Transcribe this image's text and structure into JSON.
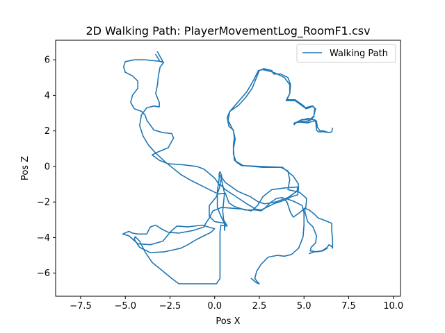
{
  "chart_data": {
    "type": "line",
    "title": "2D Walking Path: PlayerMovementLog_RoomF1.csv",
    "xlabel": "Pos X",
    "ylabel": "Pos Z",
    "xlim": [
      -8.9,
      10.4
    ],
    "ylim": [
      -7.3,
      7.1
    ],
    "xticks": [
      -7.5,
      -5.0,
      -2.5,
      0.0,
      2.5,
      5.0,
      7.5,
      10.0
    ],
    "xtick_labels": [
      "−7.5",
      "−5.0",
      "−2.5",
      "0.0",
      "2.5",
      "5.0",
      "7.5",
      "10.0"
    ],
    "yticks": [
      -6,
      -4,
      -2,
      0,
      2,
      4,
      6
    ],
    "ytick_labels": [
      "−6",
      "−4",
      "−2",
      "0",
      "2",
      "4",
      "6"
    ],
    "grid": false,
    "legend": {
      "placement": "top-right",
      "entries": [
        "Walking Path"
      ]
    },
    "series": [
      {
        "name": "Walking Path",
        "color": "#1f77b4",
        "points": [
          [
            -3.2,
            6.45
          ],
          [
            -2.9,
            5.9
          ],
          [
            -3.4,
            5.95
          ],
          [
            -3.9,
            6.0
          ],
          [
            -4.5,
            6.0
          ],
          [
            -5.0,
            5.9
          ],
          [
            -5.1,
            5.6
          ],
          [
            -5.0,
            5.3
          ],
          [
            -4.6,
            5.1
          ],
          [
            -4.3,
            4.8
          ],
          [
            -4.3,
            4.4
          ],
          [
            -4.6,
            4.0
          ],
          [
            -4.7,
            3.6
          ],
          [
            -4.5,
            3.25
          ],
          [
            -4.1,
            3.1
          ],
          [
            -3.9,
            2.9
          ],
          [
            -3.8,
            2.6
          ],
          [
            -3.4,
            2.05
          ],
          [
            -2.9,
            1.9
          ],
          [
            -2.4,
            1.85
          ],
          [
            -2.3,
            1.6
          ],
          [
            -2.6,
            1.05
          ],
          [
            -3.2,
            0.8
          ],
          [
            -3.5,
            0.65
          ],
          [
            -3.1,
            0.35
          ],
          [
            -2.6,
            0.15
          ],
          [
            -1.8,
            0.1
          ],
          [
            -1.0,
            0.0
          ],
          [
            -0.6,
            -0.15
          ],
          [
            0.0,
            -0.65
          ],
          [
            0.3,
            -1.1
          ],
          [
            0.1,
            -1.7
          ],
          [
            -0.3,
            -2.2
          ],
          [
            -0.3,
            -2.8
          ],
          [
            0.0,
            -3.1
          ],
          [
            0.6,
            -3.2
          ],
          [
            0.55,
            -3.6
          ],
          [
            0.55,
            -3.2
          ],
          [
            0.35,
            -2.8
          ],
          [
            0.15,
            -2.3
          ],
          [
            0.15,
            -1.4
          ],
          [
            0.25,
            -0.65
          ],
          [
            0.25,
            -0.4
          ],
          [
            0.3,
            -0.3
          ],
          [
            0.4,
            -0.55
          ],
          [
            0.3,
            -1.0
          ],
          [
            0.6,
            -1.3
          ],
          [
            1.2,
            -1.7
          ],
          [
            1.8,
            -2.1
          ],
          [
            2.3,
            -2.4
          ],
          [
            2.6,
            -2.45
          ],
          [
            2.9,
            -2.3
          ],
          [
            3.3,
            -2.1
          ],
          [
            3.9,
            -1.9
          ],
          [
            4.3,
            -1.7
          ],
          [
            4.65,
            -1.6
          ],
          [
            4.7,
            -1.15
          ],
          [
            4.0,
            -1.2
          ],
          [
            3.2,
            -1.3
          ],
          [
            2.7,
            -1.7
          ],
          [
            2.4,
            -2.2
          ],
          [
            2.05,
            -2.5
          ],
          [
            1.6,
            -2.4
          ],
          [
            1.0,
            -2.35
          ],
          [
            0.4,
            -2.3
          ],
          [
            -0.1,
            -2.5
          ],
          [
            -0.3,
            -2.9
          ],
          [
            -0.5,
            -3.2
          ],
          [
            -0.6,
            -3.4
          ],
          [
            -1.2,
            -3.6
          ],
          [
            -2.0,
            -3.75
          ],
          [
            -2.6,
            -3.7
          ],
          [
            -3.0,
            -3.5
          ],
          [
            -3.3,
            -3.3
          ],
          [
            -3.6,
            -3.4
          ],
          [
            -3.8,
            -3.8
          ],
          [
            -4.3,
            -3.8
          ],
          [
            -4.6,
            -3.75
          ],
          [
            -4.8,
            -3.65
          ],
          [
            -5.15,
            -3.8
          ],
          [
            -4.8,
            -3.9
          ],
          [
            -4.3,
            -4.35
          ],
          [
            -3.6,
            -4.4
          ],
          [
            -2.9,
            -4.2
          ],
          [
            -2.4,
            -3.6
          ],
          [
            -2.1,
            -3.35
          ],
          [
            -1.5,
            -3.4
          ],
          [
            -0.7,
            -3.3
          ],
          [
            -0.35,
            -3.4
          ],
          [
            0.0,
            -3.5
          ],
          [
            -0.2,
            -3.7
          ],
          [
            -0.6,
            -3.9
          ],
          [
            -1.0,
            -4.1
          ],
          [
            -1.5,
            -4.4
          ],
          [
            -1.9,
            -4.6
          ],
          [
            -2.8,
            -4.8
          ],
          [
            -3.6,
            -4.85
          ],
          [
            -4.2,
            -4.55
          ],
          [
            -4.5,
            -4.1
          ],
          [
            -4.45,
            -3.95
          ],
          [
            -4.2,
            -4.2
          ],
          [
            -3.9,
            -4.8
          ],
          [
            -3.5,
            -5.4
          ],
          [
            -3.0,
            -5.8
          ],
          [
            -2.4,
            -6.3
          ],
          [
            -2.0,
            -6.6
          ],
          [
            -1.2,
            -6.6
          ],
          [
            -0.4,
            -6.6
          ],
          [
            0.1,
            -6.6
          ],
          [
            0.3,
            -6.3
          ],
          [
            0.3,
            -5.0
          ],
          [
            0.3,
            -3.7
          ],
          [
            0.35,
            -3.3
          ],
          [
            0.7,
            -3.35
          ],
          [
            0.5,
            -3.0
          ],
          [
            0.45,
            -2.5
          ],
          [
            0.55,
            -1.5
          ],
          [
            0.35,
            -0.6
          ],
          [
            0.3,
            -0.5
          ],
          [
            0.6,
            -0.9
          ],
          [
            1.3,
            -1.4
          ],
          [
            2.0,
            -1.7
          ],
          [
            2.45,
            -2.0
          ],
          [
            2.8,
            -2.1
          ],
          [
            3.4,
            -2.0
          ],
          [
            4.1,
            -1.75
          ],
          [
            4.6,
            -1.4
          ],
          [
            4.7,
            -1.0
          ],
          [
            4.4,
            -0.55
          ],
          [
            3.8,
            -0.05
          ],
          [
            2.6,
            0.0
          ],
          [
            1.5,
            0.05
          ],
          [
            1.2,
            0.25
          ],
          [
            1.05,
            0.7
          ],
          [
            1.05,
            1.2
          ],
          [
            1.1,
            1.6
          ],
          [
            1.05,
            2.05
          ],
          [
            0.8,
            2.25
          ],
          [
            0.7,
            2.75
          ],
          [
            0.85,
            3.1
          ],
          [
            1.35,
            3.45
          ],
          [
            1.75,
            3.9
          ],
          [
            2.1,
            4.4
          ],
          [
            2.3,
            4.9
          ],
          [
            2.5,
            5.4
          ],
          [
            2.75,
            5.5
          ],
          [
            3.2,
            5.4
          ],
          [
            3.3,
            5.2
          ],
          [
            3.7,
            5.2
          ],
          [
            4.1,
            5.0
          ],
          [
            4.25,
            4.6
          ],
          [
            4.2,
            4.1
          ],
          [
            4.05,
            3.75
          ],
          [
            4.5,
            3.75
          ],
          [
            5.0,
            3.4
          ],
          [
            5.1,
            3.25
          ],
          [
            5.3,
            3.3
          ],
          [
            5.5,
            3.4
          ],
          [
            5.6,
            3.25
          ],
          [
            5.55,
            2.8
          ],
          [
            5.35,
            2.6
          ],
          [
            4.9,
            2.65
          ],
          [
            4.55,
            2.45
          ],
          [
            4.45,
            2.35
          ],
          [
            4.45,
            2.45
          ],
          [
            4.75,
            2.5
          ],
          [
            5.2,
            2.45
          ],
          [
            5.5,
            2.55
          ],
          [
            5.7,
            2.55
          ],
          [
            5.75,
            2.2
          ],
          [
            5.9,
            2.0
          ],
          [
            6.1,
            2.0
          ],
          [
            6.4,
            1.9
          ],
          [
            6.55,
            1.95
          ],
          [
            6.6,
            2.15
          ],
          [
            6.55,
            1.95
          ],
          [
            6.4,
            1.9
          ],
          [
            6.1,
            1.95
          ],
          [
            5.8,
            1.95
          ],
          [
            5.7,
            2.05
          ],
          [
            5.65,
            2.6
          ],
          [
            5.25,
            2.7
          ],
          [
            4.8,
            2.6
          ],
          [
            4.5,
            2.45
          ],
          [
            4.45,
            2.35
          ],
          [
            4.6,
            2.5
          ],
          [
            5.0,
            2.55
          ],
          [
            5.2,
            2.5
          ],
          [
            5.55,
            2.85
          ],
          [
            5.65,
            3.25
          ],
          [
            5.45,
            3.4
          ],
          [
            5.05,
            3.3
          ],
          [
            4.5,
            3.7
          ],
          [
            4.0,
            3.7
          ],
          [
            4.2,
            4.1
          ],
          [
            4.2,
            4.6
          ],
          [
            3.9,
            5.0
          ],
          [
            3.4,
            5.25
          ],
          [
            3.1,
            5.35
          ],
          [
            2.7,
            5.45
          ],
          [
            2.45,
            5.4
          ],
          [
            2.2,
            4.9
          ],
          [
            1.8,
            4.2
          ],
          [
            1.2,
            3.5
          ],
          [
            0.85,
            3.1
          ],
          [
            0.75,
            2.6
          ],
          [
            1.05,
            2.0
          ],
          [
            1.15,
            1.55
          ],
          [
            1.05,
            1.0
          ],
          [
            1.1,
            0.35
          ],
          [
            1.6,
            0.05
          ],
          [
            2.7,
            -0.05
          ],
          [
            3.7,
            -0.05
          ],
          [
            4.1,
            -0.25
          ],
          [
            4.2,
            -0.75
          ],
          [
            4.1,
            -1.3
          ],
          [
            4.75,
            -1.45
          ],
          [
            5.15,
            -1.8
          ],
          [
            5.1,
            -2.3
          ],
          [
            4.75,
            -2.6
          ],
          [
            4.4,
            -2.85
          ],
          [
            4.25,
            -2.6
          ],
          [
            4.05,
            -2.0
          ],
          [
            3.8,
            -1.75
          ],
          [
            3.45,
            -1.8
          ],
          [
            3.1,
            -2.05
          ],
          [
            2.8,
            -2.35
          ],
          [
            2.6,
            -2.5
          ],
          [
            2.3,
            -2.45
          ],
          [
            1.7,
            -2.45
          ],
          [
            1.1,
            -2.25
          ],
          [
            0.8,
            -2.05
          ],
          [
            0.6,
            -1.5
          ],
          [
            0.2,
            -1.55
          ],
          [
            -0.5,
            -1.2
          ],
          [
            -1.3,
            -0.8
          ],
          [
            -1.9,
            -0.45
          ],
          [
            -2.7,
            0.2
          ],
          [
            -3.3,
            0.75
          ],
          [
            -3.7,
            1.2
          ],
          [
            -4.0,
            1.7
          ],
          [
            -4.2,
            2.3
          ],
          [
            -4.1,
            2.9
          ],
          [
            -3.8,
            3.3
          ],
          [
            -3.4,
            3.4
          ],
          [
            -3.1,
            3.35
          ],
          [
            -3.1,
            3.6
          ],
          [
            -3.3,
            4.1
          ],
          [
            -3.2,
            4.6
          ],
          [
            -3.15,
            5.1
          ],
          [
            -3.05,
            5.6
          ],
          [
            -2.85,
            5.85
          ],
          [
            -3.05,
            5.9
          ],
          [
            -3.3,
            6.3
          ]
        ]
      },
      {
        "name": "",
        "color": "#1f77b4",
        "points": [
          [
            5.3,
            -4.9
          ],
          [
            5.6,
            -4.8
          ],
          [
            6.0,
            -4.75
          ],
          [
            6.3,
            -4.55
          ],
          [
            6.4,
            -4.4
          ],
          [
            6.55,
            -4.5
          ],
          [
            6.6,
            -4.6
          ],
          [
            6.6,
            -4.1
          ],
          [
            6.55,
            -3.6
          ],
          [
            6.55,
            -3.2
          ],
          [
            6.2,
            -3.05
          ],
          [
            5.8,
            -2.9
          ],
          [
            5.6,
            -2.7
          ],
          [
            5.3,
            -2.45
          ],
          [
            5.05,
            -2.35
          ],
          [
            5.05,
            -2.55
          ],
          [
            5.2,
            -3.1
          ],
          [
            5.5,
            -3.4
          ],
          [
            5.7,
            -3.9
          ],
          [
            5.65,
            -4.3
          ],
          [
            5.4,
            -4.55
          ],
          [
            5.35,
            -4.75
          ],
          [
            5.7,
            -4.8
          ],
          [
            6.05,
            -4.75
          ],
          [
            6.3,
            -4.6
          ]
        ]
      },
      {
        "name": "",
        "color": "#1f77b4",
        "points": [
          [
            4.1,
            -1.85
          ],
          [
            4.4,
            -1.95
          ],
          [
            4.9,
            -2.2
          ],
          [
            5.0,
            -2.6
          ],
          [
            5.0,
            -3.3
          ],
          [
            4.95,
            -3.95
          ],
          [
            4.7,
            -4.6
          ],
          [
            4.3,
            -4.95
          ],
          [
            3.9,
            -5.05
          ],
          [
            3.5,
            -5.0
          ],
          [
            3.0,
            -5.1
          ],
          [
            2.6,
            -5.5
          ],
          [
            2.35,
            -5.9
          ],
          [
            2.25,
            -6.3
          ],
          [
            2.4,
            -6.5
          ],
          [
            2.5,
            -6.6
          ],
          [
            2.35,
            -6.55
          ],
          [
            2.05,
            -6.3
          ]
        ]
      }
    ]
  }
}
